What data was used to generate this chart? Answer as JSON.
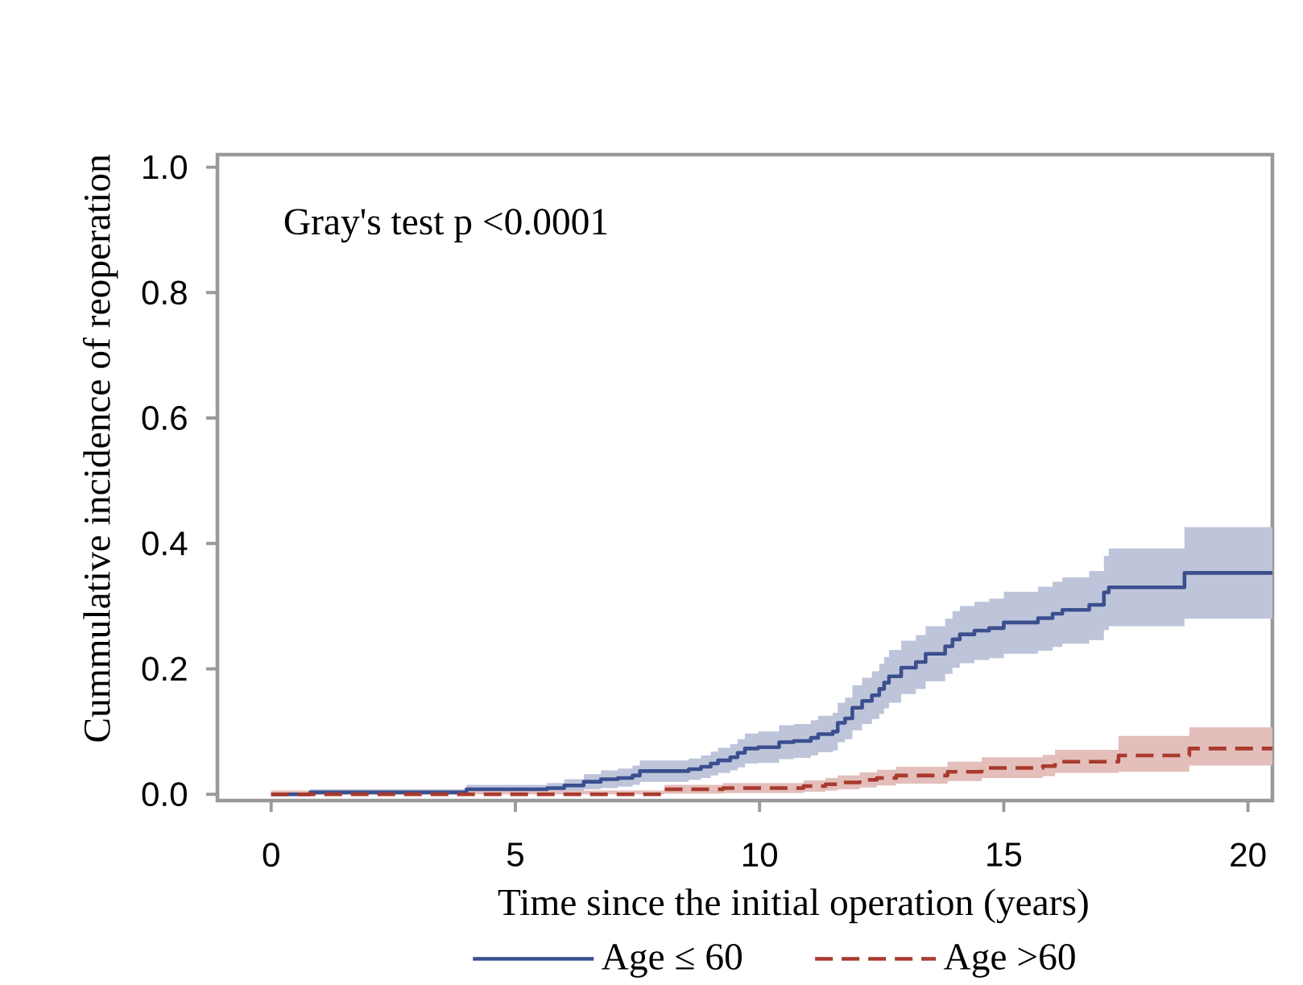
{
  "chart_data": {
    "type": "step",
    "xlabel": "Time since the initial operation (years)",
    "ylabel": "Cummulative incidence of reoperation",
    "annotations": [
      "Gray's test p <0.0001"
    ],
    "xlim": [
      -1.1,
      20.5
    ],
    "ylim": [
      -0.01,
      1.02
    ],
    "xticks": [
      0,
      5,
      10,
      15,
      20
    ],
    "yticks": [
      {
        "value": 0,
        "label": "0.0"
      },
      {
        "value": 0.2,
        "label": "0.2"
      },
      {
        "value": 0.4,
        "label": "0.4"
      },
      {
        "value": 0.6,
        "label": "0.6"
      },
      {
        "value": 0.8,
        "label": "0.8"
      },
      {
        "value": 1,
        "label": "1.0"
      }
    ],
    "legend": "bottom",
    "series": [
      {
        "name": "Age ≤ 60",
        "color": "#3b4f8f",
        "line_style": "solid",
        "x": [
          0,
          0.8,
          4.0,
          5.65,
          6.0,
          6.4,
          6.75,
          7.1,
          7.4,
          7.55,
          8.55,
          8.8,
          9.0,
          9.15,
          9.4,
          9.55,
          9.7,
          9.97,
          10.4,
          10.7,
          11.05,
          11.2,
          11.5,
          11.6,
          11.75,
          11.9,
          12.1,
          12.3,
          12.45,
          12.55,
          12.65,
          12.9,
          13.2,
          13.4,
          13.8,
          13.95,
          14.1,
          14.4,
          14.7,
          15.0,
          15.7,
          16.0,
          16.2,
          16.75,
          17.05,
          17.15,
          18.7,
          20.5
        ],
        "values": [
          0,
          0.003,
          0.008,
          0.01,
          0.014,
          0.02,
          0.024,
          0.026,
          0.03,
          0.037,
          0.04,
          0.044,
          0.049,
          0.054,
          0.059,
          0.066,
          0.073,
          0.075,
          0.083,
          0.085,
          0.09,
          0.096,
          0.1,
          0.114,
          0.121,
          0.138,
          0.149,
          0.158,
          0.168,
          0.178,
          0.188,
          0.202,
          0.211,
          0.224,
          0.236,
          0.247,
          0.255,
          0.261,
          0.265,
          0.274,
          0.281,
          0.288,
          0.294,
          0.302,
          0.322,
          0.33,
          0.353,
          0.353
        ],
        "lower": [
          0,
          0,
          0.001,
          0.002,
          0.004,
          0.008,
          0.01,
          0.012,
          0.015,
          0.02,
          0.023,
          0.026,
          0.03,
          0.034,
          0.038,
          0.043,
          0.049,
          0.05,
          0.056,
          0.058,
          0.062,
          0.067,
          0.07,
          0.083,
          0.088,
          0.102,
          0.112,
          0.12,
          0.128,
          0.137,
          0.146,
          0.16,
          0.168,
          0.18,
          0.192,
          0.202,
          0.209,
          0.214,
          0.217,
          0.224,
          0.229,
          0.235,
          0.24,
          0.246,
          0.262,
          0.268,
          0.28,
          0.28
        ],
        "upper": [
          0,
          0.008,
          0.015,
          0.018,
          0.024,
          0.032,
          0.038,
          0.041,
          0.046,
          0.054,
          0.057,
          0.062,
          0.068,
          0.074,
          0.08,
          0.088,
          0.097,
          0.1,
          0.11,
          0.112,
          0.118,
          0.125,
          0.13,
          0.146,
          0.154,
          0.174,
          0.186,
          0.196,
          0.208,
          0.219,
          0.23,
          0.245,
          0.254,
          0.268,
          0.28,
          0.292,
          0.3,
          0.307,
          0.312,
          0.323,
          0.331,
          0.339,
          0.346,
          0.356,
          0.38,
          0.392,
          0.426,
          0.426
        ]
      },
      {
        "name": "Age >60",
        "color": "#a93a2e",
        "line_style": "dashed",
        "x": [
          0,
          8.05,
          9.25,
          10.9,
          11.35,
          11.6,
          12.05,
          12.4,
          12.8,
          13.85,
          14.55,
          15.8,
          16.05,
          17.35,
          18.8,
          20.5
        ],
        "values": [
          0,
          0.008,
          0.01,
          0.013,
          0.016,
          0.019,
          0.023,
          0.026,
          0.03,
          0.036,
          0.042,
          0.045,
          0.052,
          0.062,
          0.073,
          0.073
        ],
        "lower": [
          0,
          0.001,
          0.002,
          0.004,
          0.006,
          0.008,
          0.011,
          0.014,
          0.017,
          0.021,
          0.026,
          0.029,
          0.034,
          0.036,
          0.046,
          0.046
        ],
        "upper": [
          0.006,
          0.015,
          0.018,
          0.022,
          0.026,
          0.03,
          0.035,
          0.039,
          0.044,
          0.052,
          0.059,
          0.063,
          0.071,
          0.093,
          0.107,
          0.107
        ]
      }
    ]
  }
}
